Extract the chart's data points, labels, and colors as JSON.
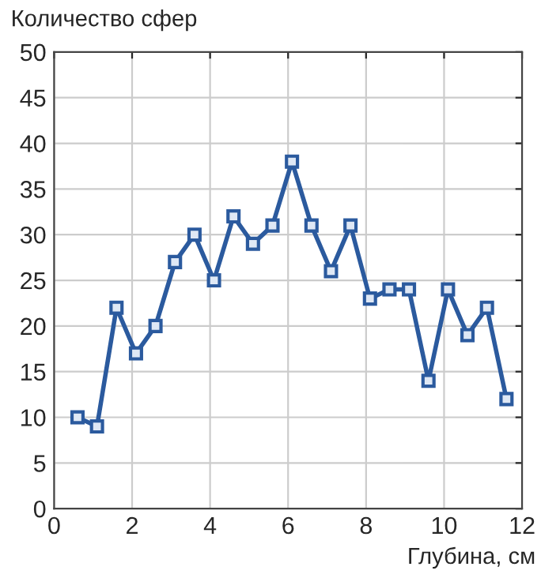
{
  "chart_data": {
    "type": "line",
    "ylabel": "Количество сфер",
    "xlabel": "Глубина, см",
    "x": [
      0.6,
      1.1,
      1.6,
      2.1,
      2.6,
      3.1,
      3.6,
      4.1,
      4.6,
      5.1,
      5.6,
      6.1,
      6.6,
      7.1,
      7.6,
      8.1,
      8.6,
      9.1,
      9.6,
      10.1,
      10.6,
      11.1,
      11.6
    ],
    "series": [
      {
        "color": "#2b5a9e",
        "values": [
          10,
          9,
          22,
          17,
          20,
          27,
          30,
          25,
          32,
          29,
          31,
          38,
          31,
          26,
          31,
          23,
          24,
          24,
          14,
          24,
          19,
          22,
          12
        ]
      }
    ],
    "xlim": [
      0,
      12
    ],
    "xticks": [
      0,
      2,
      4,
      6,
      8,
      10,
      12
    ],
    "ylim": [
      0,
      50
    ],
    "yticks": [
      0,
      5,
      10,
      15,
      20,
      25,
      30,
      35,
      40,
      45,
      50
    ],
    "grid": true,
    "marker": "square",
    "line_style": "solid"
  }
}
